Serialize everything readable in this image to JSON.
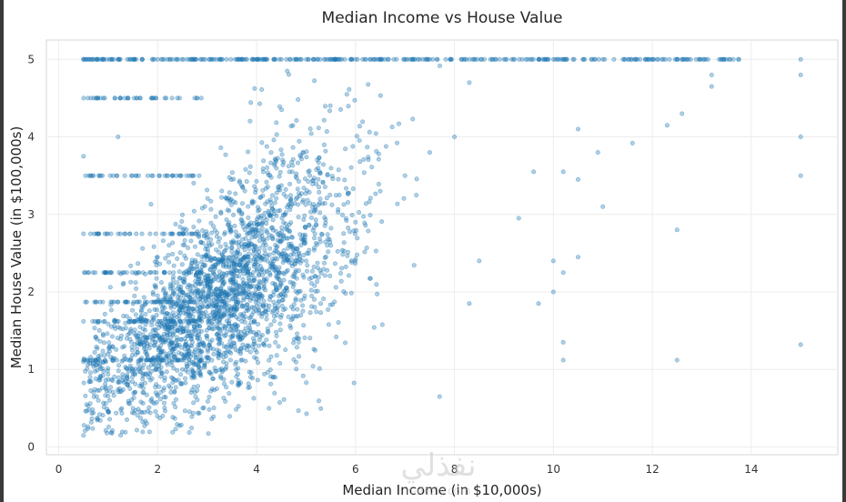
{
  "chart_data": {
    "type": "scatter",
    "title": "Median Income vs House Value",
    "xlabel": "Median Income (in $10,000s)",
    "ylabel": "Median House Value (in $100,000s)",
    "xlim": [
      -0.25,
      15.75
    ],
    "ylim": [
      -0.1,
      5.25
    ],
    "xticks": [
      "0",
      "2",
      "4",
      "6",
      "8",
      "10",
      "12",
      "14"
    ],
    "yticks": [
      "0",
      "1",
      "2",
      "3",
      "4",
      "5"
    ],
    "grid": true,
    "marker_color": "#1f77b4",
    "marker_alpha": 0.35,
    "approx_relationship": {
      "y_at_x_0_5": 0.75,
      "slope": 0.42
    },
    "cap_value_y": 5.0,
    "points_sample": [
      [
        0.5,
        5.0
      ],
      [
        0.9,
        5.0
      ],
      [
        1.2,
        5.0
      ],
      [
        1.9,
        5.0
      ],
      [
        2.3,
        5.0
      ],
      [
        3.1,
        5.0
      ],
      [
        4.5,
        5.0
      ],
      [
        6.0,
        5.0
      ],
      [
        7.5,
        5.0
      ],
      [
        9.0,
        5.0
      ],
      [
        10.2,
        5.0
      ],
      [
        11.0,
        5.0
      ],
      [
        12.0,
        5.0
      ],
      [
        13.4,
        5.0
      ],
      [
        15.0,
        5.0
      ],
      [
        0.5,
        1.62
      ],
      [
        0.5,
        1.1
      ],
      [
        0.5,
        0.15
      ],
      [
        0.5,
        3.75
      ],
      [
        0.5,
        2.75
      ],
      [
        0.8,
        0.6
      ],
      [
        1.0,
        0.45
      ],
      [
        1.5,
        0.5
      ],
      [
        1.2,
        4.0
      ],
      [
        1.1,
        3.5
      ],
      [
        2.1,
        0.4
      ],
      [
        2.5,
        1.0
      ],
      [
        3.0,
        1.4
      ],
      [
        3.5,
        1.5
      ],
      [
        4.0,
        1.9
      ],
      [
        4.5,
        2.1
      ],
      [
        5.0,
        2.4
      ],
      [
        5.5,
        2.6
      ],
      [
        6.0,
        2.9
      ],
      [
        6.5,
        3.3
      ],
      [
        7.0,
        3.5
      ],
      [
        7.5,
        3.8
      ],
      [
        8.0,
        4.0
      ],
      [
        8.3,
        4.7
      ],
      [
        7.7,
        0.65
      ],
      [
        8.3,
        1.85
      ],
      [
        8.5,
        2.4
      ],
      [
        9.3,
        2.95
      ],
      [
        9.6,
        3.55
      ],
      [
        9.7,
        1.85
      ],
      [
        10.0,
        2.0
      ],
      [
        10.0,
        2.4
      ],
      [
        10.2,
        2.25
      ],
      [
        10.2,
        1.12
      ],
      [
        10.2,
        1.35
      ],
      [
        10.2,
        3.55
      ],
      [
        10.5,
        2.45
      ],
      [
        10.5,
        3.45
      ],
      [
        10.5,
        4.1
      ],
      [
        10.9,
        3.8
      ],
      [
        11.0,
        3.1
      ],
      [
        11.6,
        3.92
      ],
      [
        12.3,
        4.15
      ],
      [
        12.5,
        2.8
      ],
      [
        12.5,
        1.12
      ],
      [
        12.6,
        4.3
      ],
      [
        13.2,
        4.65
      ],
      [
        13.2,
        4.8
      ],
      [
        15.0,
        4.0
      ],
      [
        15.0,
        3.5
      ],
      [
        15.0,
        1.32
      ],
      [
        15.0,
        4.8
      ]
    ]
  },
  "watermark": {
    "arabic": "نفذلي",
    "latin": "nafezly.com"
  }
}
